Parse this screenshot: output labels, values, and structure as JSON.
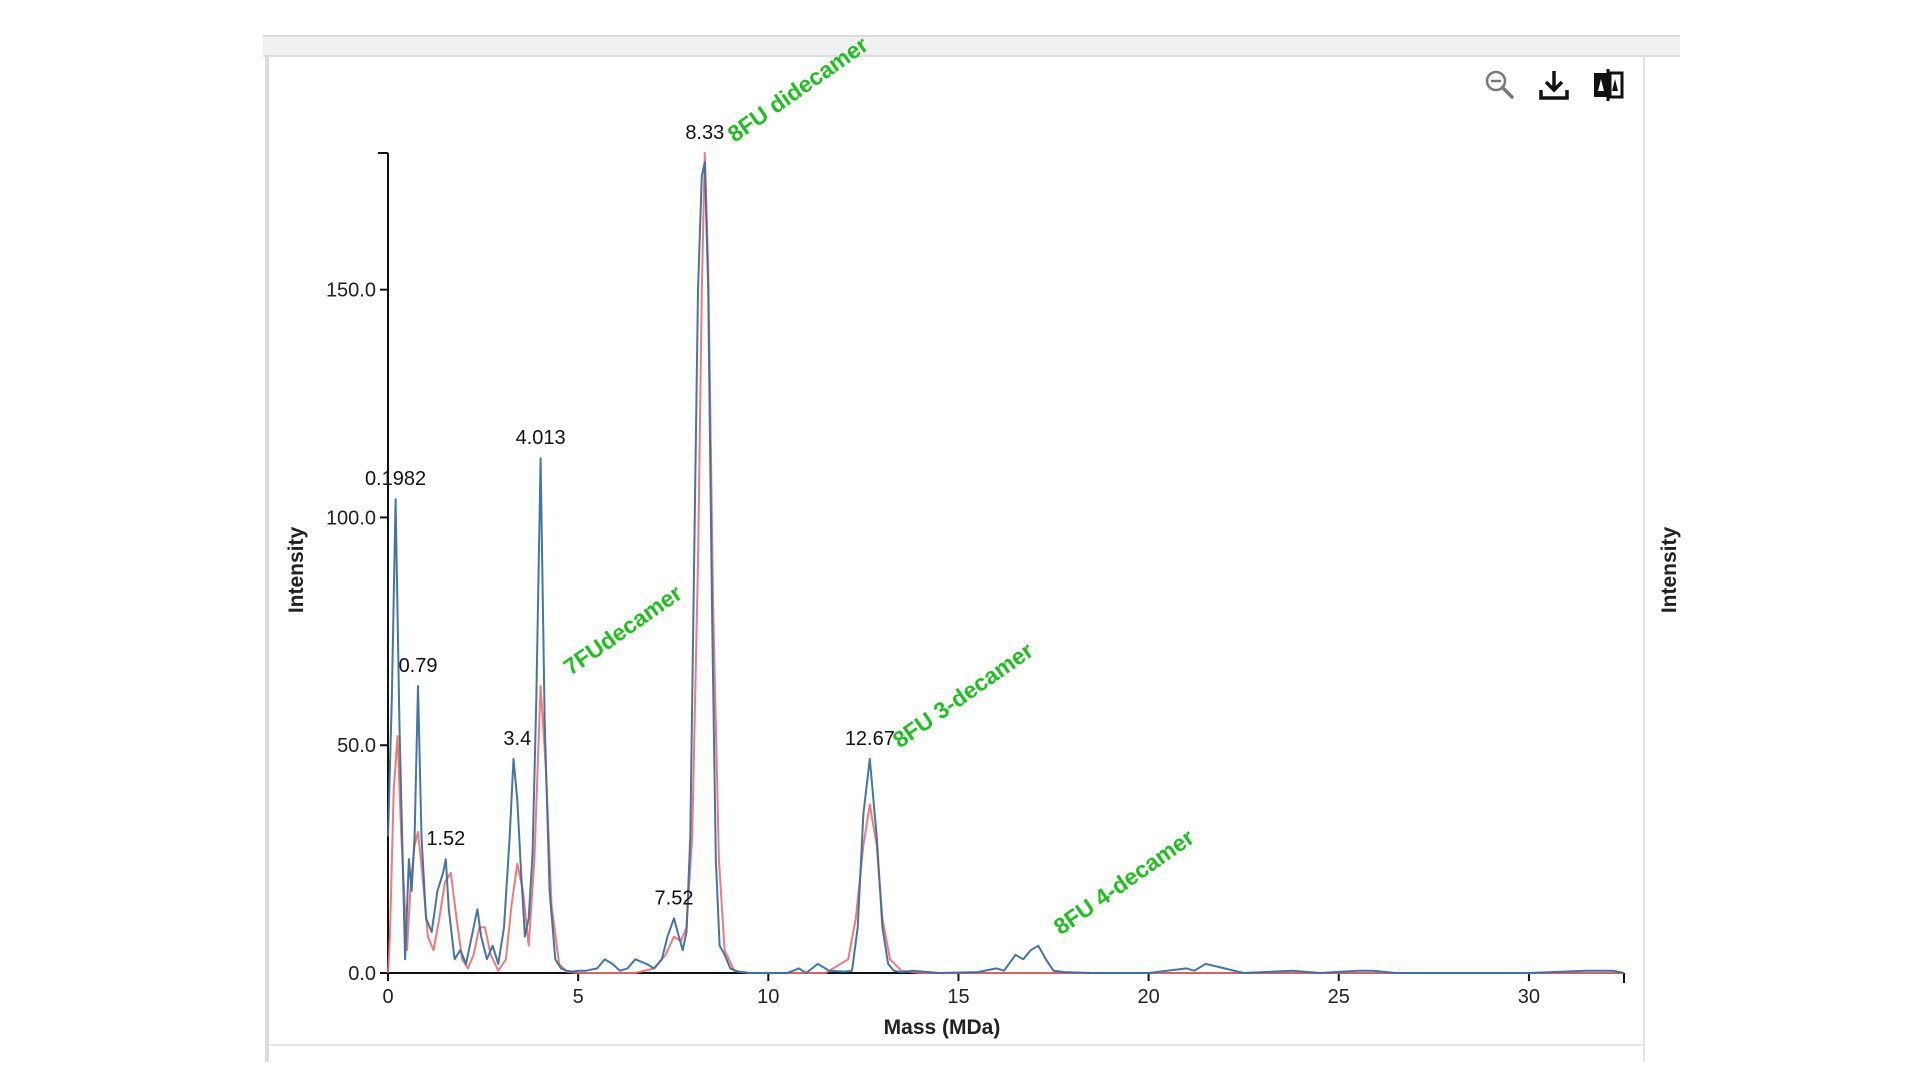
{
  "toolbar": {
    "icons": [
      "zoom-out-icon",
      "download-icon",
      "compare-icon"
    ]
  },
  "colors": {
    "raw_trace": "#3a6fa0",
    "fit_trace": "#f06a6a",
    "fit_overlap": "#7a3a6a",
    "annotation": "#1fbf1f"
  },
  "chart_data": {
    "type": "line",
    "title": "",
    "xlabel": "Mass (MDa)",
    "ylabel": "Intensity",
    "ylabel_right": "Intensity",
    "xlim": [
      0,
      32.5
    ],
    "ylim": [
      0,
      180
    ],
    "x_ticks": [
      "0",
      "5",
      "10",
      "15",
      "20",
      "25",
      "30"
    ],
    "y_ticks": [
      "0.0",
      "50.0",
      "100.0",
      "150.0"
    ],
    "grid": false,
    "series": [
      {
        "x": [
          0,
          0.1,
          0.2,
          0.3,
          0.45,
          0.55,
          0.62,
          0.7,
          0.79,
          0.88,
          1.0,
          1.15,
          1.3,
          1.45,
          1.52,
          1.6,
          1.75,
          1.9,
          2.05,
          2.2,
          2.35,
          2.45,
          2.6,
          2.75,
          2.9,
          3.05,
          3.2,
          3.3,
          3.4,
          3.5,
          3.6,
          3.7,
          3.8,
          3.9,
          4.013,
          4.12,
          4.25,
          4.4,
          4.55,
          4.7,
          4.85,
          5.0,
          5.2,
          5.5,
          5.7,
          5.9,
          6.1,
          6.3,
          6.5,
          6.8,
          7.0,
          7.2,
          7.35,
          7.52,
          7.65,
          7.75,
          7.85,
          7.95,
          8.05,
          8.15,
          8.25,
          8.33,
          8.42,
          8.52,
          8.62,
          8.72,
          8.85,
          9.0,
          9.2,
          9.5,
          10.0,
          10.5,
          10.8,
          11.0,
          11.3,
          11.6,
          12.0,
          12.2,
          12.35,
          12.5,
          12.67,
          12.85,
          13.0,
          13.15,
          13.3,
          13.5,
          13.8,
          14.5,
          15.5,
          16.0,
          16.2,
          16.5,
          16.7,
          16.9,
          17.1,
          17.3,
          17.5,
          17.8,
          18.5,
          20.0,
          21.0,
          21.2,
          21.5,
          22.5,
          23.8,
          24.5,
          25.5,
          25.7,
          25.9,
          26.5,
          28.0,
          30.0,
          31.5,
          32.2,
          32.5
        ],
        "values": [
          30,
          60,
          104,
          55,
          3,
          25,
          18,
          30,
          63,
          30,
          12,
          9,
          18,
          22,
          25,
          14,
          3,
          5,
          2,
          8,
          14,
          8,
          3,
          6,
          2,
          10,
          30,
          47,
          38,
          22,
          8,
          12,
          26,
          60,
          113,
          55,
          18,
          3,
          1,
          0.5,
          0.3,
          0.5,
          0.5,
          1,
          3,
          2,
          0.5,
          1,
          3,
          2,
          1,
          3,
          8,
          12,
          8,
          5,
          9,
          30,
          90,
          150,
          175,
          178,
          150,
          80,
          25,
          6,
          4,
          1,
          0.3,
          0,
          0,
          0,
          1,
          0,
          2,
          0.5,
          0.3,
          0.5,
          10,
          35,
          47,
          30,
          10,
          2,
          0.5,
          0.2,
          0.5,
          0,
          0.2,
          1,
          0.5,
          4,
          3,
          5,
          6,
          3,
          0.5,
          0.2,
          0,
          0,
          1,
          0.5,
          2,
          0,
          0.5,
          0,
          0.5,
          0.5,
          0.5,
          0,
          0,
          0,
          0.5,
          0.5,
          0
        ],
        "color": "#3a6fa0"
      },
      {
        "x": [
          0,
          0.05,
          0.15,
          0.25,
          0.35,
          0.5,
          0.6,
          0.7,
          0.79,
          0.9,
          1.05,
          1.2,
          1.35,
          1.5,
          1.65,
          1.8,
          1.95,
          2.1,
          2.25,
          2.4,
          2.55,
          2.7,
          2.9,
          3.1,
          3.25,
          3.4,
          3.55,
          3.7,
          3.85,
          4.013,
          4.15,
          4.3,
          4.5,
          4.7,
          5.0,
          6.5,
          7.0,
          7.3,
          7.52,
          7.7,
          7.85,
          8.0,
          8.15,
          8.25,
          8.33,
          8.42,
          8.55,
          8.7,
          8.85,
          9.1,
          9.5,
          11.5,
          12.1,
          12.3,
          12.5,
          12.67,
          12.85,
          13.0,
          13.2,
          13.5,
          14.0,
          16.0,
          17.0,
          32.5
        ],
        "values": [
          0,
          8,
          40,
          52,
          30,
          5,
          20,
          28,
          31,
          22,
          8,
          5,
          12,
          20,
          22,
          12,
          3,
          1,
          4,
          10,
          10,
          4,
          0.5,
          3,
          15,
          24,
          18,
          6,
          25,
          63,
          45,
          15,
          2,
          0.3,
          0,
          0,
          1,
          4,
          8,
          7,
          10,
          30,
          90,
          150,
          180,
          155,
          80,
          25,
          5,
          0.5,
          0,
          0,
          3,
          12,
          28,
          37,
          28,
          12,
          3,
          0.5,
          0,
          0,
          0,
          0
        ],
        "color": "#f06a6a"
      }
    ],
    "peak_labels": [
      {
        "x": 0.1982,
        "y": 104,
        "label": "0.1982"
      },
      {
        "x": 0.79,
        "y": 63,
        "label": "0.79"
      },
      {
        "x": 1.52,
        "y": 25,
        "label": "1.52"
      },
      {
        "x": 3.4,
        "y": 47,
        "label": "3.4"
      },
      {
        "x": 4.013,
        "y": 113,
        "label": "4.013"
      },
      {
        "x": 7.52,
        "y": 12,
        "label": "7.52"
      },
      {
        "x": 8.33,
        "y": 180,
        "label": "8.33"
      },
      {
        "x": 12.67,
        "y": 47,
        "label": "12.67"
      }
    ],
    "annotations": [
      {
        "x": 8.33,
        "y": 180,
        "label": "8FU didecamer"
      },
      {
        "x": 4.013,
        "y": 63,
        "label": "7FUdecamer"
      },
      {
        "x": 12.67,
        "y": 47,
        "label": "8FU 3-decamer"
      },
      {
        "x": 16.9,
        "y": 6,
        "label": "8FU 4-decamer"
      }
    ]
  }
}
